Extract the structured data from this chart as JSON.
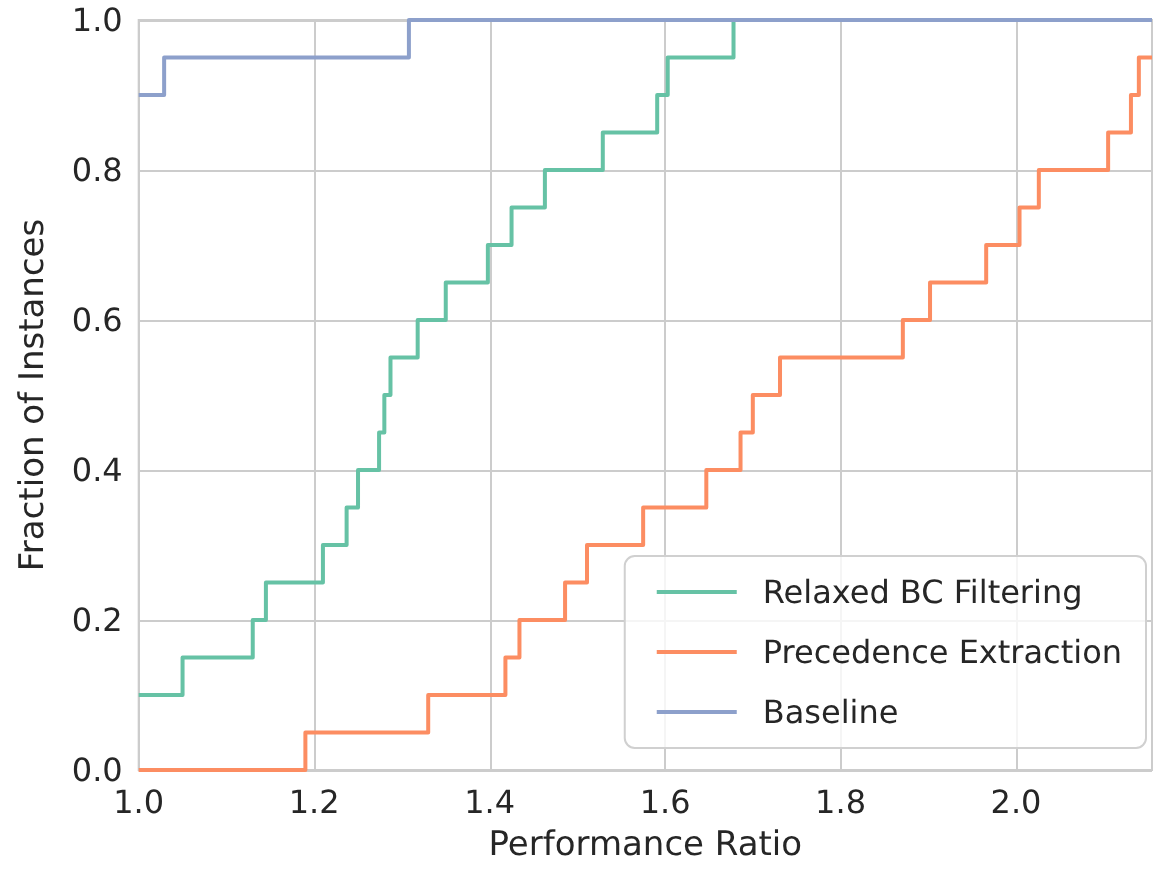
{
  "chart_data": {
    "type": "step",
    "xlabel": "Performance Ratio",
    "ylabel": "Fraction of Instances",
    "series": [
      {
        "name": "Relaxed BC Filtering",
        "color": "#66c2a5",
        "x": [
          1.0,
          1.05,
          1.13,
          1.145,
          1.21,
          1.237,
          1.25,
          1.274,
          1.28,
          1.287,
          1.318,
          1.35,
          1.398,
          1.425,
          1.463,
          1.529,
          1.591,
          1.603,
          1.678,
          2.155
        ],
        "values": [
          0.1,
          0.15,
          0.2,
          0.25,
          0.3,
          0.35,
          0.4,
          0.45,
          0.5,
          0.55,
          0.6,
          0.65,
          0.7,
          0.75,
          0.8,
          0.85,
          0.9,
          0.95,
          1.0,
          1.0
        ]
      },
      {
        "name": "Precedence Extraction",
        "color": "#fc8d62",
        "x": [
          1.0,
          1.19,
          1.33,
          1.418,
          1.434,
          1.486,
          1.511,
          1.575,
          1.647,
          1.686,
          1.7,
          1.731,
          1.871,
          1.902,
          1.966,
          2.004,
          2.026,
          2.105,
          2.131,
          2.14,
          2.155
        ],
        "values": [
          0.0,
          0.05,
          0.1,
          0.15,
          0.2,
          0.25,
          0.3,
          0.35,
          0.4,
          0.45,
          0.5,
          0.55,
          0.6,
          0.65,
          0.7,
          0.75,
          0.8,
          0.85,
          0.9,
          0.95,
          0.95
        ]
      },
      {
        "name": "Baseline",
        "color": "#8da0cb",
        "x": [
          1.0,
          1.029,
          1.308,
          2.155
        ],
        "values": [
          0.9,
          0.95,
          1.0,
          1.0
        ]
      }
    ],
    "xlim": [
      1.0,
      2.155
    ],
    "xticks": [
      {
        "value": 1.0,
        "label": "1.0"
      },
      {
        "value": 1.2,
        "label": "1.2"
      },
      {
        "value": 1.4,
        "label": "1.4"
      },
      {
        "value": 1.6,
        "label": "1.6"
      },
      {
        "value": 1.8,
        "label": "1.8"
      },
      {
        "value": 2.0,
        "label": "2.0"
      }
    ],
    "ylim": [
      0,
      1
    ],
    "yticks": [
      {
        "value": 0,
        "label": "0.0"
      },
      {
        "value": 0.2,
        "label": "0.2"
      },
      {
        "value": 0.4,
        "label": "0.4"
      },
      {
        "value": 0.6,
        "label": "0.6"
      },
      {
        "value": 0.8,
        "label": "0.8"
      },
      {
        "value": 1.0,
        "label": "1.0"
      }
    ],
    "grid": true,
    "legend": "bottom right",
    "marker": "none",
    "line_style": "solid"
  }
}
